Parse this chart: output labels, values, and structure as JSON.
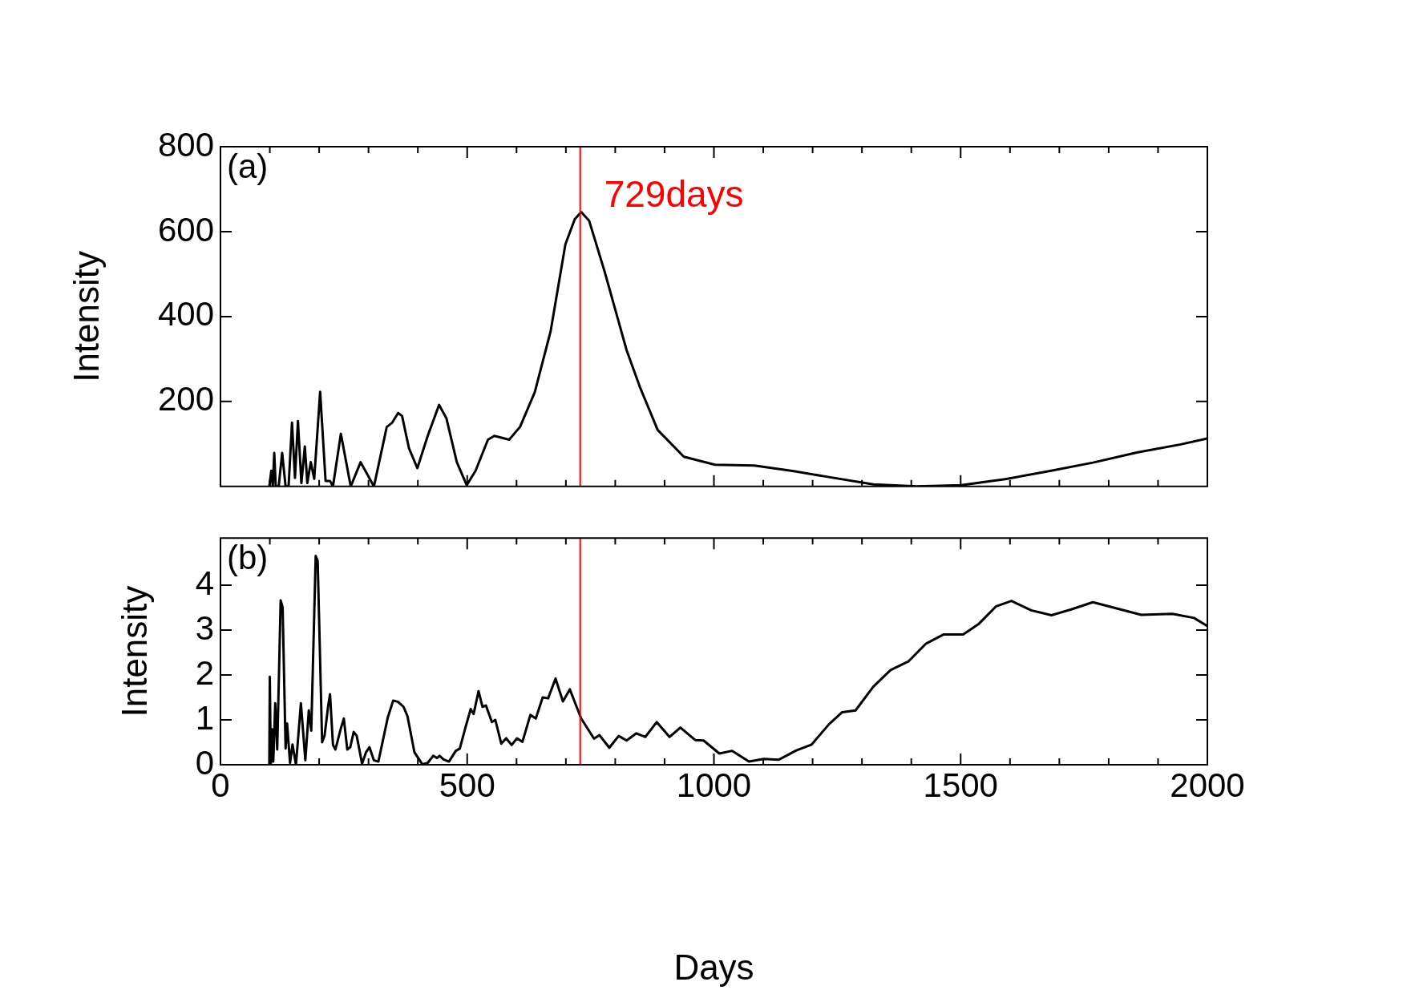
{
  "chart_data": [
    {
      "type": "line",
      "ylabel": "Intensity",
      "annotations": [
        "(a)"
      ],
      "tick_labels": "y",
      "x": [
        99,
        103,
        106,
        109,
        112,
        118,
        125,
        132,
        138,
        145,
        151,
        157,
        164,
        171,
        176,
        183,
        190,
        202,
        213,
        222,
        228,
        244,
        264,
        284,
        311,
        337,
        348,
        360,
        368,
        382,
        399,
        420,
        443,
        458,
        479,
        499,
        517,
        542,
        555,
        585,
        607,
        637,
        669,
        699,
        718,
        731,
        747,
        779,
        823,
        850,
        886,
        939,
        1002,
        1082,
        1162,
        1233,
        1323,
        1412,
        1501,
        1590,
        1679,
        1768,
        1857,
        1946,
        2000
      ],
      "values": [
        0,
        37,
        0,
        79,
        0,
        0,
        79,
        0,
        0,
        150,
        20,
        154,
        8,
        94,
        8,
        57,
        18,
        223,
        13,
        13,
        0,
        124,
        0,
        57,
        0,
        140,
        150,
        173,
        166,
        90,
        43,
        119,
        192,
        160,
        57,
        3,
        37,
        110,
        119,
        110,
        140,
        222,
        365,
        570,
        629,
        646,
        626,
        504,
        321,
        234,
        133,
        70,
        51,
        49,
        36,
        22,
        5,
        0,
        3,
        17,
        36,
        56,
        80,
        99,
        113
      ],
      "color": "#000000",
      "xlim": [
        0,
        2000
      ],
      "xticks": [
        0,
        {
          "value": 100,
          "label": null
        },
        {
          "value": 200,
          "label": null
        },
        {
          "value": 300,
          "label": null
        },
        {
          "value": 400,
          "label": null
        },
        500,
        {
          "value": 600,
          "label": null
        },
        {
          "value": 700,
          "label": null
        },
        {
          "value": 800,
          "label": null
        },
        {
          "value": 900,
          "label": null
        },
        1000,
        {
          "value": 1100,
          "label": null
        },
        {
          "value": 1200,
          "label": null
        },
        {
          "value": 1300,
          "label": null
        },
        {
          "value": 1400,
          "label": null
        },
        1500,
        {
          "value": 1600,
          "label": null
        },
        {
          "value": 1700,
          "label": null
        },
        {
          "value": 1800,
          "label": null
        },
        {
          "value": 1900,
          "label": null
        },
        2000
      ],
      "ylim": [
        0,
        800
      ],
      "yticks": [
        200,
        400,
        600,
        800
      ],
      "ref_lines": [
        {
          "axis": "x",
          "value": 729,
          "label": "729days",
          "color": "#ff0000"
        }
      ]
    },
    {
      "type": "line",
      "xlabel": "Days",
      "ylabel": "Intensity",
      "annotations": [
        "(b)"
      ],
      "x": [
        99,
        100,
        102,
        105,
        107,
        111,
        115,
        122,
        126,
        132,
        135,
        141,
        146,
        153,
        163,
        172,
        179,
        184,
        193,
        197,
        206,
        211,
        218,
        222,
        228,
        233,
        244,
        250,
        257,
        263,
        270,
        276,
        287,
        295,
        302,
        311,
        320,
        339,
        350,
        360,
        371,
        379,
        393,
        409,
        420,
        431,
        439,
        444,
        452,
        463,
        477,
        485,
        496,
        507,
        513,
        523,
        531,
        538,
        550,
        557,
        569,
        579,
        590,
        601,
        612,
        628,
        639,
        653,
        664,
        679,
        694,
        708,
        731,
        757,
        768,
        788,
        807,
        823,
        843,
        861,
        884,
        910,
        932,
        962,
        979,
        1011,
        1037,
        1071,
        1101,
        1131,
        1167,
        1198,
        1233,
        1260,
        1287,
        1323,
        1358,
        1394,
        1430,
        1465,
        1505,
        1537,
        1572,
        1603,
        1643,
        1684,
        1724,
        1768,
        1813,
        1866,
        1929,
        1973,
        2000
      ],
      "values": [
        0,
        1.96,
        0,
        0.79,
        0.07,
        1.37,
        0.34,
        3.66,
        3.5,
        0.36,
        0.92,
        0.04,
        0.45,
        0,
        1.37,
        0.1,
        1.21,
        0.76,
        4.65,
        4.54,
        0.5,
        0.65,
        1.29,
        1.57,
        0.44,
        0.34,
        0.81,
        1.03,
        0.34,
        0.39,
        0.73,
        0.65,
        0.02,
        0.28,
        0.39,
        0.1,
        0.07,
        1.05,
        1.43,
        1.4,
        1.29,
        1.08,
        0.28,
        0.01,
        0.04,
        0.2,
        0.15,
        0.2,
        0.12,
        0.07,
        0.31,
        0.36,
        0.81,
        1.24,
        1.13,
        1.64,
        1.29,
        1.32,
        0.95,
        1.0,
        0.47,
        0.59,
        0.44,
        0.59,
        0.51,
        1.11,
        1.03,
        1.5,
        1.48,
        1.92,
        1.41,
        1.68,
        1.03,
        0.58,
        0.66,
        0.38,
        0.64,
        0.54,
        0.7,
        0.62,
        0.95,
        0.62,
        0.83,
        0.55,
        0.54,
        0.25,
        0.31,
        0.07,
        0.13,
        0.11,
        0.32,
        0.45,
        0.9,
        1.17,
        1.21,
        1.74,
        2.11,
        2.3,
        2.7,
        2.9,
        2.9,
        3.14,
        3.53,
        3.65,
        3.44,
        3.33,
        3.46,
        3.62,
        3.49,
        3.34,
        3.36,
        3.27,
        3.09
      ],
      "color": "#000000",
      "xlim": [
        0,
        2000
      ],
      "xticks": [
        0,
        {
          "value": 100,
          "label": null
        },
        {
          "value": 200,
          "label": null
        },
        {
          "value": 300,
          "label": null
        },
        {
          "value": 400,
          "label": null
        },
        500,
        {
          "value": 600,
          "label": null
        },
        {
          "value": 700,
          "label": null
        },
        {
          "value": 800,
          "label": null
        },
        {
          "value": 900,
          "label": null
        },
        1000,
        {
          "value": 1100,
          "label": null
        },
        {
          "value": 1200,
          "label": null
        },
        {
          "value": 1300,
          "label": null
        },
        {
          "value": 1400,
          "label": null
        },
        1500,
        {
          "value": 1600,
          "label": null
        },
        {
          "value": 1700,
          "label": null
        },
        {
          "value": 1800,
          "label": null
        },
        {
          "value": 1900,
          "label": null
        },
        2000
      ],
      "ylim": [
        0,
        5.05
      ],
      "yticks": [
        0,
        1,
        2,
        3,
        4
      ],
      "ref_lines": [
        {
          "axis": "x",
          "value": 729,
          "color": "#ff0000"
        }
      ]
    }
  ]
}
